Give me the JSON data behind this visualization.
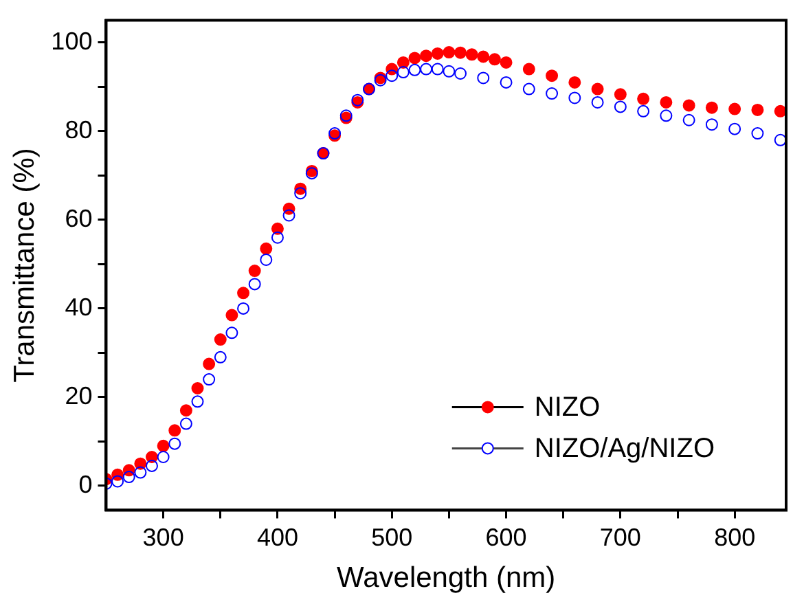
{
  "chart_data": {
    "type": "scatter",
    "xlabel": "Wavelength (nm)",
    "ylabel": "Transmittance (%)",
    "xlim": [
      250,
      845
    ],
    "ylim": [
      -5.5,
      105
    ],
    "xticks": [
      300,
      {
        "value": 350,
        "label": null
      },
      400,
      {
        "value": 450,
        "label": null
      },
      500,
      {
        "value": 550,
        "label": null
      },
      600,
      {
        "value": 650,
        "label": null
      },
      700,
      {
        "value": 750,
        "label": null
      },
      800
    ],
    "yticks": [
      0,
      {
        "value": 10,
        "label": null
      },
      20,
      {
        "value": 30,
        "label": null
      },
      40,
      {
        "value": 50,
        "label": null
      },
      60,
      {
        "value": 70,
        "label": null
      },
      80,
      {
        "value": 90,
        "label": null
      },
      100
    ],
    "grid": false,
    "legend": "bottom right",
    "marker": "circle",
    "series": [
      {
        "name": "NIZO",
        "color": "#ff0000",
        "x": [
          250,
          260,
          270,
          280,
          290,
          300,
          310,
          320,
          330,
          340,
          350,
          360,
          370,
          380,
          390,
          400,
          410,
          420,
          430,
          440,
          450,
          460,
          470,
          480,
          490,
          500,
          510,
          520,
          530,
          540,
          550,
          560,
          570,
          580,
          590,
          600,
          620,
          640,
          660,
          680,
          700,
          720,
          740,
          760,
          780,
          800,
          820,
          840
        ],
        "values": [
          1.5,
          2.5,
          3.5,
          5,
          6.5,
          9,
          12.5,
          17,
          22,
          27.5,
          33,
          38.5,
          43.5,
          48.5,
          53.5,
          58,
          62.5,
          67,
          71,
          75,
          79,
          83,
          86.5,
          89.5,
          92,
          94,
          95.5,
          96.5,
          97,
          97.5,
          97.8,
          97.7,
          97.3,
          96.8,
          96.2,
          95.5,
          94,
          92.5,
          91,
          89.5,
          88.3,
          87.3,
          86.5,
          85.8,
          85.3,
          85,
          84.8,
          84.5
        ]
      },
      {
        "name": "NIZO/Ag/NIZO",
        "color": "#0000ff",
        "x": [
          250,
          260,
          270,
          280,
          290,
          300,
          310,
          320,
          330,
          340,
          350,
          360,
          370,
          380,
          390,
          400,
          410,
          420,
          430,
          440,
          450,
          460,
          470,
          480,
          490,
          500,
          510,
          520,
          530,
          540,
          550,
          560,
          580,
          600,
          620,
          640,
          660,
          680,
          700,
          720,
          740,
          760,
          780,
          800,
          820,
          840
        ],
        "values": [
          0.5,
          1,
          2,
          3,
          4.5,
          6.5,
          9.5,
          14,
          19,
          24,
          29,
          34.5,
          40,
          45.5,
          51,
          56,
          61,
          66,
          70.5,
          75,
          79.5,
          83.5,
          87,
          89.5,
          91.5,
          92.5,
          93.3,
          93.8,
          94,
          94,
          93.5,
          93,
          92,
          91,
          89.5,
          88.5,
          87.5,
          86.5,
          85.5,
          84.5,
          83.5,
          82.5,
          81.5,
          80.5,
          79.5,
          78
        ]
      }
    ]
  }
}
